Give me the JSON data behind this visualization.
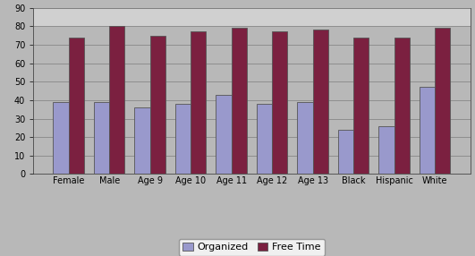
{
  "categories": [
    "Female",
    "Male",
    "Age 9",
    "Age 10",
    "Age 11",
    "Age 12",
    "Age 13",
    "Black",
    "Hispanic",
    "White"
  ],
  "organized": [
    39,
    39,
    36,
    38,
    43,
    38,
    39,
    24,
    26,
    47
  ],
  "free_time": [
    74,
    80,
    75,
    77,
    79,
    77,
    78,
    74,
    74,
    79
  ],
  "bar_color_organized": "#9999cc",
  "bar_color_free_time": "#7b2040",
  "background_color": "#b8b8b8",
  "plot_bg_color": "#b8b8b8",
  "top_band_color": "#d0d0d0",
  "ylim": [
    0,
    90
  ],
  "yticks": [
    0,
    10,
    20,
    30,
    40,
    50,
    60,
    70,
    80,
    90
  ],
  "legend_labels": [
    "Organized",
    "Free Time"
  ],
  "bar_width": 0.38,
  "grid_color": "#888888",
  "edge_color": "#555555",
  "tick_fontsize": 7,
  "legend_fontsize": 8
}
